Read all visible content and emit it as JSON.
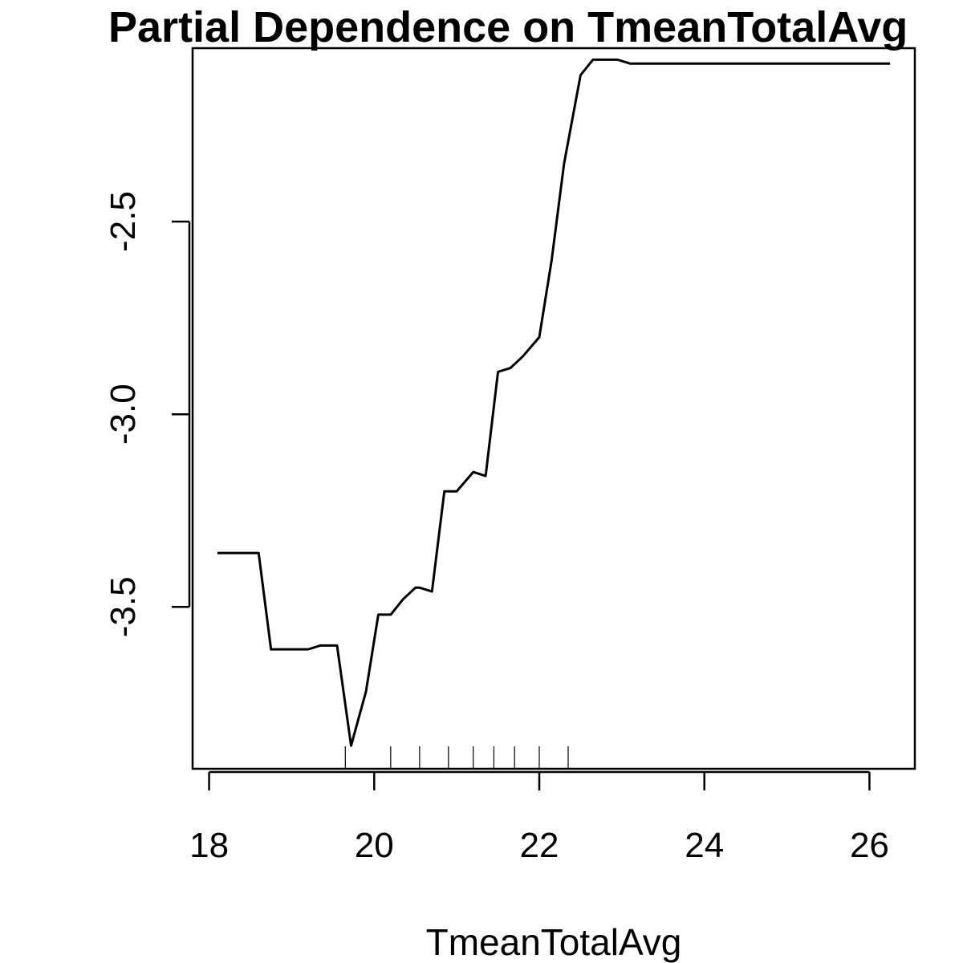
{
  "chart_data": {
    "type": "line",
    "title": "Partial Dependence on TmeanTotalAvg",
    "xlabel": "TmeanTotalAvg",
    "ylabel": "",
    "xlim": [
      17.8,
      26.55
    ],
    "ylim": [
      -3.92,
      -2.05
    ],
    "x_ticks": [
      18,
      20,
      22,
      24,
      26
    ],
    "x_tick_labels": [
      "18",
      "20",
      "22",
      "24",
      "26"
    ],
    "y_ticks": [
      -3.5,
      -3.0,
      -2.5
    ],
    "y_tick_labels": [
      "-3.5",
      "-3.0",
      "-2.5"
    ],
    "grid": false,
    "legend": "none",
    "line_color": "#000000",
    "series": [
      {
        "x": [
          18.1,
          18.3,
          18.45,
          18.6,
          18.75,
          18.9,
          19.05,
          19.2,
          19.35,
          19.5,
          19.55,
          19.72,
          19.9,
          20.05,
          20.2,
          20.35,
          20.5,
          20.55,
          20.7,
          20.85,
          21.0,
          21.2,
          21.35,
          21.5,
          21.65,
          21.8,
          22.0,
          22.15,
          22.3,
          22.5,
          22.65,
          22.8,
          22.95,
          23.1,
          23.5,
          24.0,
          24.5,
          25.0,
          25.5,
          26.0,
          26.25
        ],
        "y": [
          -3.36,
          -3.36,
          -3.36,
          -3.36,
          -3.61,
          -3.61,
          -3.61,
          -3.61,
          -3.6,
          -3.6,
          -3.6,
          -3.86,
          -3.72,
          -3.52,
          -3.52,
          -3.48,
          -3.45,
          -3.45,
          -3.46,
          -3.2,
          -3.2,
          -3.15,
          -3.16,
          -2.89,
          -2.88,
          -2.85,
          -2.8,
          -2.6,
          -2.35,
          -2.12,
          -2.08,
          -2.08,
          -2.08,
          -2.09,
          -2.09,
          -2.09,
          -2.09,
          -2.09,
          -2.09,
          -2.09,
          -2.09
        ]
      }
    ],
    "rug": [
      19.65,
      20.2,
      20.55,
      20.9,
      21.2,
      21.45,
      21.7,
      22.0,
      22.35
    ]
  }
}
